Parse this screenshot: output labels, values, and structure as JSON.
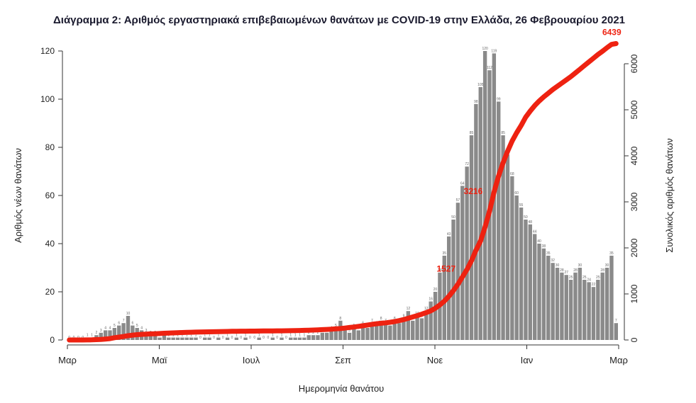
{
  "title": "Διάγραμμα 2: Αριθμός εργαστηριακά επιβεβαιωμένων θανάτων με COVID-19 στην Ελλάδα, 26 Φεβρουαρίου 2021",
  "colors": {
    "bar": "#8a8a8a",
    "line": "#ee2211",
    "annotation": "#ee2211",
    "axis": "#333333",
    "title": "#1a1a2e"
  },
  "chart_data": {
    "type": "bar",
    "title": "Διάγραμμα 2: Αριθμός εργαστηριακά επιβεβαιωμένων θανάτων με COVID-19 στην Ελλάδα, 26 Φεβρουαρίου 2021",
    "xlabel": "Ημερομηνία θανάτου",
    "ylabel_left": "Αριθμός νέων θανάτων",
    "ylabel_right": "Συνολικός αριθμός θανάτων",
    "x_tick_labels": [
      "Μαρ",
      "Μαϊ",
      "Ιουλ",
      "Σεπ",
      "Νοε",
      "Ιαν",
      "Μαρ"
    ],
    "yleft_ticks": [
      0,
      20,
      40,
      60,
      80,
      100,
      120
    ],
    "yright_ticks": [
      0,
      1000,
      2000,
      3000,
      4000,
      5000,
      6000
    ],
    "yleft_range": [
      0,
      120
    ],
    "yright_range": [
      0,
      6000
    ],
    "grid": false,
    "legend": "none",
    "sampling_note": "values sampled every 3 days, Mar 2020 - 26 Feb 2021",
    "series": [
      {
        "name": "daily_deaths",
        "type": "bar",
        "values": [
          0,
          0,
          0,
          0,
          1,
          1,
          2,
          3,
          4,
          4,
          5,
          6,
          7,
          10,
          6,
          5,
          4,
          3,
          2,
          2,
          1,
          2,
          1,
          1,
          1,
          1,
          1,
          1,
          1,
          0,
          1,
          1,
          0,
          1,
          0,
          1,
          0,
          1,
          0,
          1,
          0,
          0,
          1,
          0,
          0,
          1,
          0,
          1,
          0,
          1,
          1,
          1,
          1,
          2,
          2,
          2,
          3,
          3,
          4,
          5,
          8,
          4,
          3,
          5,
          4,
          6,
          5,
          7,
          6,
          8,
          7,
          6,
          8,
          7,
          9,
          12,
          8,
          10,
          9,
          12,
          16,
          20,
          28,
          35,
          43,
          50,
          57,
          64,
          72,
          85,
          98,
          105,
          120,
          112,
          119,
          99,
          85,
          77,
          68,
          60,
          55,
          50,
          48,
          44,
          40,
          38,
          35,
          32,
          30,
          28,
          27,
          25,
          28,
          30,
          25,
          24,
          22,
          25,
          28,
          30,
          35,
          7
        ]
      },
      {
        "name": "cumulative_deaths",
        "type": "line",
        "values": [
          0,
          0,
          0,
          0,
          1,
          3,
          7,
          13,
          20,
          30,
          49,
          62,
          75,
          92,
          105,
          115,
          122,
          128,
          132,
          136,
          140,
          146,
          150,
          154,
          158,
          161,
          164,
          167,
          170,
          172,
          175,
          177,
          179,
          181,
          183,
          185,
          187,
          188,
          190,
          191,
          192,
          193,
          194,
          195,
          196,
          197,
          198,
          199,
          200,
          201,
          203,
          206,
          209,
          212,
          216,
          220,
          225,
          230,
          235,
          241,
          248,
          259,
          270,
          282,
          295,
          310,
          325,
          340,
          352,
          363,
          373,
          385,
          400,
          420,
          443,
          470,
          500,
          530,
          560,
          595,
          633,
          690,
          760,
          845,
          950,
          1070,
          1210,
          1370,
          1527,
          1720,
          1950,
          2150,
          2450,
          2800,
          3216,
          3560,
          3850,
          4100,
          4320,
          4500,
          4660,
          4838,
          4970,
          5090,
          5190,
          5280,
          5360,
          5440,
          5510,
          5580,
          5650,
          5720,
          5800,
          5880,
          5960,
          6040,
          6120,
          6200,
          6270,
          6350,
          6420,
          6439
        ]
      }
    ],
    "annotations": [
      {
        "text": "1527",
        "index": 88
      },
      {
        "text": "3216",
        "index": 94
      },
      {
        "text": "6439",
        "index": 121
      }
    ]
  }
}
